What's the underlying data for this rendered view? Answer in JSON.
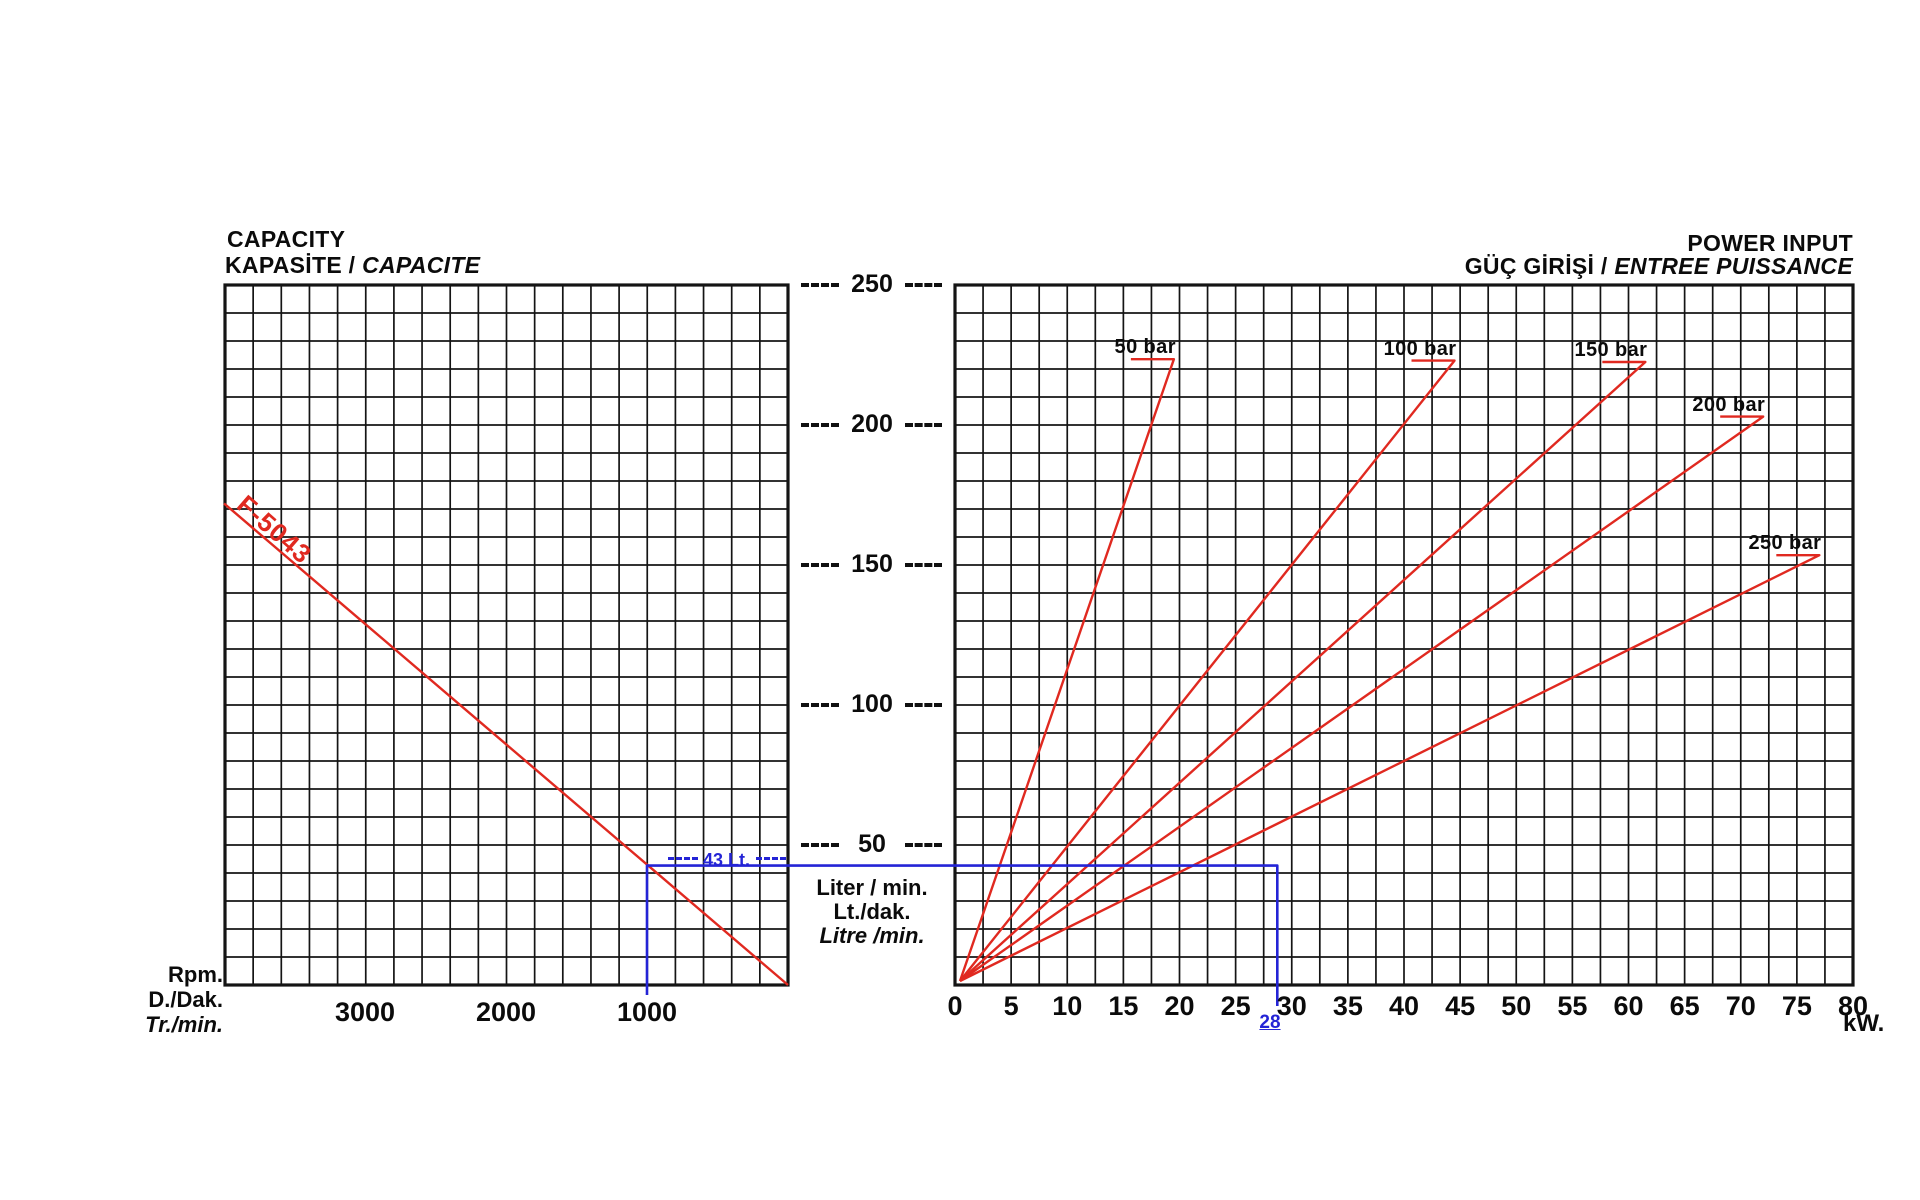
{
  "left_chart": {
    "title": "CAPACITY",
    "subtitle_plain": "KAPASİTE / ",
    "subtitle_italic": "CAPACITE",
    "x_ticks": [
      "3000",
      "2000",
      "1000"
    ],
    "x_unit_line1": "Rpm.",
    "x_unit_line2": "D./Dak.",
    "x_unit_line3_italic": "Tr./min.",
    "curve_label": "F-5043"
  },
  "shared_y_axis": {
    "ticks": [
      "250",
      "200",
      "150",
      "100",
      "50"
    ],
    "unit_line1": "Liter / min.",
    "unit_line2": "Lt./dak.",
    "unit_line3_italic": "Litre /min."
  },
  "right_chart": {
    "title": "POWER INPUT",
    "subtitle_plain": "GÜÇ GİRİŞİ / ",
    "subtitle_italic": "ENTREE PUISSANCE",
    "x_ticks": [
      "0",
      "5",
      "10",
      "15",
      "20",
      "25",
      "30",
      "35",
      "40",
      "45",
      "50",
      "55",
      "60",
      "65",
      "70",
      "75",
      "80"
    ],
    "x_unit": "kW."
  },
  "construction": {
    "flow_label": "43 Lt.",
    "power_label": "28"
  },
  "colors": {
    "curve_red": "#e02920",
    "construction_blue": "#2424d6",
    "ink": "#141414"
  },
  "chart_data": [
    {
      "type": "line",
      "title": "CAPACITY / KAPASİTE / CAPACITE",
      "xlabel": "Rpm. / D./Dak. / Tr./min.",
      "ylabel": "Liter / min. / Lt./dak. / Litre /min.",
      "xlim": [
        4000,
        0
      ],
      "ylim": [
        0,
        250
      ],
      "x_axis_reversed": true,
      "grid": true,
      "series": [
        {
          "name": "F-5043",
          "points_rpm_lpm": [
            [
              4000,
              172
            ],
            [
              3000,
              129
            ],
            [
              2000,
              86
            ],
            [
              1000,
              43
            ],
            [
              0,
              0
            ]
          ]
        }
      ],
      "annotation": {
        "rpm": 1000,
        "flow_lpm": 43,
        "label": "43 Lt."
      }
    },
    {
      "type": "line",
      "title": "POWER INPUT / GÜÇ GİRİŞİ / ENTREE PUISSANCE",
      "xlabel": "kW.",
      "ylabel": "Liter / min.",
      "xlim": [
        0,
        80
      ],
      "ylim": [
        0,
        250
      ],
      "grid": true,
      "series": [
        {
          "name": "50 bar",
          "points_kw_lpm": [
            [
              0,
              0
            ],
            [
              19.5,
              223.5
            ]
          ]
        },
        {
          "name": "100 bar",
          "points_kw_lpm": [
            [
              0,
              0
            ],
            [
              44.5,
              223.0
            ]
          ]
        },
        {
          "name": "150 bar",
          "points_kw_lpm": [
            [
              0,
              0
            ],
            [
              61.5,
              222.5
            ]
          ]
        },
        {
          "name": "200 bar",
          "points_kw_lpm": [
            [
              0,
              0
            ],
            [
              72.0,
              203.0
            ]
          ]
        },
        {
          "name": "250 bar",
          "points_kw_lpm": [
            [
              0,
              0
            ],
            [
              77.0,
              153.5
            ]
          ]
        }
      ],
      "annotation": {
        "kw": 28,
        "label": "28"
      }
    }
  ]
}
